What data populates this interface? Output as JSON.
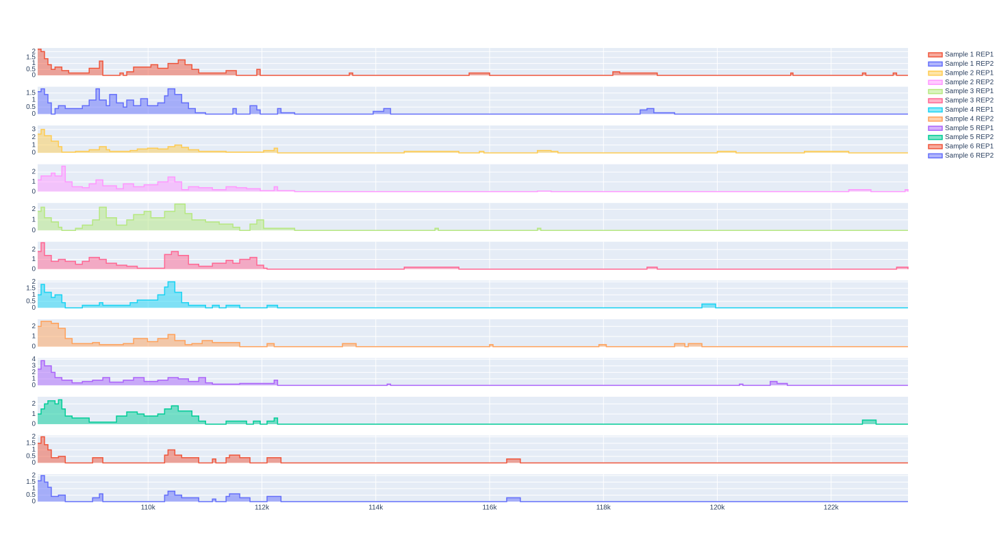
{
  "chart_data": [
    {
      "type": "area",
      "xlim": [
        108060,
        123350
      ],
      "ylim": [
        0,
        2.3
      ],
      "yticks": [
        0,
        0.5,
        1,
        1.5,
        2
      ],
      "series": [
        {
          "name": "Sample 1 REP1",
          "color": "#EF553B",
          "x": [
            108060,
            108120,
            108180,
            108240,
            108300,
            108365,
            108485,
            108605,
            108965,
            109145,
            109205,
            109505,
            109565,
            109625,
            109745,
            110050,
            110170,
            110350,
            110530,
            110650,
            110770,
            110890,
            111370,
            111550,
            111910,
            111970,
            113535,
            113595,
            115640,
            116000,
            118165,
            118285,
            118945,
            121290,
            121330,
            122550,
            122610,
            123090,
            123150,
            123350
          ],
          "values": [
            2.2,
            2.0,
            1.4,
            0.9,
            0.5,
            0.7,
            0.4,
            0.2,
            0.6,
            1.2,
            0,
            0.2,
            0,
            0.3,
            0.7,
            0.9,
            0.6,
            1.0,
            1.3,
            0.9,
            0.5,
            0.2,
            0.4,
            0,
            0.5,
            0,
            0.2,
            0,
            0.2,
            0,
            0.3,
            0.2,
            0,
            0.2,
            0,
            0.2,
            0,
            0.2,
            0,
            0
          ]
        }
      ]
    },
    {
      "type": "area",
      "xlim": [
        108060,
        123350
      ],
      "ylim": [
        0,
        1.95
      ],
      "yticks": [
        0,
        0.5,
        1,
        1.5
      ],
      "series": [
        {
          "name": "Sample 1 REP2",
          "color": "#636EFA",
          "x": [
            108060,
            108120,
            108180,
            108240,
            108300,
            108365,
            108425,
            108545,
            108725,
            108845,
            108965,
            109085,
            109145,
            109265,
            109325,
            109445,
            109565,
            109625,
            109745,
            109870,
            109990,
            110170,
            110290,
            110350,
            110470,
            110590,
            110710,
            110830,
            111010,
            111490,
            111550,
            111790,
            111910,
            111970,
            112275,
            112335,
            112575,
            113955,
            114140,
            114260,
            118645,
            118765,
            118885,
            119250,
            123350
          ],
          "values": [
            1.6,
            1.8,
            1.4,
            0.8,
            0,
            0.4,
            0.6,
            0.4,
            0.4,
            0.6,
            1.0,
            1.8,
            1.0,
            0.6,
            1.4,
            0.8,
            0.5,
            1.0,
            0.6,
            1.1,
            0.6,
            0.8,
            1.3,
            1.8,
            1.4,
            0.8,
            0.4,
            0.1,
            0,
            0.4,
            0,
            0.6,
            0.3,
            0,
            0.4,
            0.1,
            0,
            0.2,
            0.4,
            0,
            0.3,
            0.4,
            0.1,
            0,
            0
          ]
        }
      ]
    },
    {
      "type": "area",
      "xlim": [
        108060,
        123350
      ],
      "ylim": [
        0,
        3.5
      ],
      "yticks": [
        0,
        1,
        2,
        3
      ],
      "series": [
        {
          "name": "Sample 2 REP1",
          "color": "#FECB52",
          "x": [
            108060,
            108120,
            108180,
            108300,
            108425,
            108485,
            108725,
            108965,
            109145,
            109265,
            109325,
            109685,
            109810,
            109990,
            110170,
            110350,
            110470,
            110590,
            110710,
            110890,
            111370,
            112030,
            112215,
            112275,
            114500,
            115460,
            115820,
            115900,
            116840,
            117080,
            117200,
            120000,
            120330,
            121530,
            122310,
            123350
          ],
          "values": [
            2.4,
            3.0,
            2.2,
            1.5,
            0.8,
            0.1,
            0.2,
            0.4,
            0.8,
            0.4,
            0.2,
            0.3,
            0.5,
            0.6,
            0.5,
            0.8,
            1.0,
            0.7,
            0.4,
            0.2,
            0.1,
            0.3,
            0.6,
            0,
            0.2,
            0,
            0.2,
            0,
            0.3,
            0.2,
            0,
            0.2,
            0,
            0.2,
            0,
            0
          ]
        }
      ]
    },
    {
      "type": "area",
      "xlim": [
        108060,
        123350
      ],
      "ylim": [
        0,
        2.8
      ],
      "yticks": [
        0,
        1,
        2
      ],
      "series": [
        {
          "name": "Sample 2 REP2",
          "color": "#FF97FF",
          "x": [
            108060,
            108120,
            108300,
            108365,
            108485,
            108545,
            108665,
            108845,
            108965,
            109085,
            109205,
            109445,
            109565,
            109745,
            109930,
            110170,
            110350,
            110470,
            110590,
            110710,
            110890,
            111130,
            111370,
            111550,
            111730,
            111970,
            112215,
            112275,
            112575,
            116840,
            117080,
            122310,
            122700,
            123300,
            123350
          ],
          "values": [
            1.2,
            1.6,
            1.9,
            1.6,
            2.6,
            1.0,
            0.5,
            0.4,
            0.8,
            1.2,
            0.6,
            0.3,
            0.8,
            0.5,
            0.7,
            1.0,
            1.5,
            1.0,
            0.2,
            0.5,
            0.4,
            0.2,
            0.5,
            0.4,
            0.3,
            0.1,
            0.5,
            0.1,
            0,
            0.05,
            0,
            0.2,
            0,
            0.2,
            0
          ]
        }
      ]
    },
    {
      "type": "area",
      "xlim": [
        108060,
        123350
      ],
      "ylim": [
        0,
        2.6
      ],
      "yticks": [
        0,
        1,
        2
      ],
      "series": [
        {
          "name": "Sample 3 REP1",
          "color": "#B6E880",
          "x": [
            108060,
            108120,
            108180,
            108300,
            108425,
            108485,
            108725,
            108845,
            109025,
            109145,
            109265,
            109445,
            109625,
            109745,
            109930,
            110050,
            110290,
            110470,
            110650,
            110770,
            111010,
            111250,
            111490,
            111610,
            111790,
            111910,
            112030,
            112575,
            115040,
            115100,
            116840,
            116900,
            123350
          ],
          "values": [
            1.8,
            2.2,
            1.2,
            0.8,
            0.3,
            0,
            0.2,
            0.5,
            1.0,
            2.2,
            1.2,
            0.5,
            1.0,
            1.5,
            1.8,
            1.2,
            1.8,
            2.5,
            1.6,
            1.0,
            0.8,
            0.6,
            0.3,
            0,
            0.6,
            1.0,
            0.2,
            0,
            0.2,
            0,
            0.2,
            0,
            0
          ]
        }
      ]
    },
    {
      "type": "area",
      "xlim": [
        108060,
        123350
      ],
      "ylim": [
        0,
        2.8
      ],
      "yticks": [
        0,
        1,
        2
      ],
      "series": [
        {
          "name": "Sample 3 REP2",
          "color": "#FF6692",
          "x": [
            108060,
            108120,
            108180,
            108300,
            108425,
            108545,
            108725,
            108845,
            108965,
            109145,
            109265,
            109445,
            109625,
            109810,
            110290,
            110410,
            110530,
            110710,
            110890,
            111130,
            111370,
            111490,
            111610,
            111790,
            111910,
            112030,
            112090,
            114500,
            115460,
            118765,
            118945,
            123150,
            123350
          ],
          "values": [
            1.8,
            2.7,
            1.4,
            0.8,
            1.0,
            0.8,
            0.5,
            0.8,
            1.2,
            1.0,
            0.6,
            0.4,
            0.3,
            0.1,
            1.5,
            1.8,
            1.4,
            0.5,
            0.3,
            0.6,
            0.9,
            0.6,
            1.0,
            1.2,
            0.4,
            0.1,
            0,
            0.2,
            0,
            0.2,
            0,
            0.2,
            0
          ]
        }
      ]
    },
    {
      "type": "area",
      "xlim": [
        108060,
        123350
      ],
      "ylim": [
        0,
        2.1
      ],
      "yticks": [
        0,
        0.5,
        1,
        1.5,
        2
      ],
      "series": [
        {
          "name": "Sample 4 REP1",
          "color": "#19D3F3",
          "x": [
            108060,
            108120,
            108180,
            108300,
            108365,
            108485,
            108545,
            108845,
            109145,
            109205,
            109445,
            109685,
            109810,
            109990,
            110170,
            110290,
            110350,
            110470,
            110590,
            110710,
            111010,
            111130,
            111250,
            111370,
            111610,
            112090,
            112275,
            119730,
            119970,
            123350
          ],
          "values": [
            1.0,
            1.8,
            1.2,
            0.8,
            1.0,
            0.4,
            0,
            0.2,
            0.4,
            0.2,
            0.2,
            0.4,
            0.6,
            0.6,
            1.0,
            1.6,
            2.0,
            1.2,
            0.4,
            0.2,
            0,
            0.2,
            0,
            0.2,
            0,
            0.2,
            0,
            0.3,
            0,
            0
          ]
        }
      ]
    },
    {
      "type": "area",
      "xlim": [
        108060,
        123350
      ],
      "ylim": [
        0,
        2.7
      ],
      "yticks": [
        0,
        1,
        2
      ],
      "series": [
        {
          "name": "Sample 4 REP2",
          "color": "#FFA15A",
          "x": [
            108060,
            108120,
            108300,
            108425,
            108545,
            108665,
            109025,
            109145,
            109565,
            109745,
            109990,
            110170,
            110350,
            110470,
            110650,
            110770,
            110950,
            111130,
            111610,
            112090,
            112215,
            113415,
            113655,
            116000,
            116060,
            117920,
            118050,
            119250,
            119430,
            119490,
            119730,
            123350
          ],
          "values": [
            2.0,
            2.5,
            2.3,
            1.8,
            0.8,
            0.3,
            0.4,
            0.2,
            0.3,
            0.8,
            0.5,
            0.8,
            1.2,
            0.6,
            0.2,
            0.3,
            0.6,
            0.4,
            0,
            0.3,
            0,
            0.3,
            0,
            0.2,
            0,
            0.2,
            0,
            0.3,
            0,
            0.3,
            0,
            0
          ]
        }
      ]
    },
    {
      "type": "area",
      "xlim": [
        108060,
        123350
      ],
      "ylim": [
        0,
        4.2
      ],
      "yticks": [
        0,
        1,
        2,
        3,
        4
      ],
      "series": [
        {
          "name": "Sample 5 REP1",
          "color": "#AB63FA",
          "x": [
            108060,
            108120,
            108180,
            108300,
            108365,
            108485,
            108665,
            108845,
            109025,
            109205,
            109325,
            109565,
            109745,
            109930,
            110170,
            110350,
            110530,
            110710,
            110890,
            111010,
            111130,
            111610,
            112090,
            112215,
            112275,
            114200,
            114260,
            120390,
            120450,
            120930,
            121050,
            121230,
            123350
          ],
          "values": [
            2.5,
            3.8,
            3.0,
            2.0,
            1.2,
            0.8,
            0.4,
            0.6,
            0.8,
            1.2,
            0.5,
            0.8,
            1.2,
            0.6,
            0.8,
            1.2,
            1.0,
            0.6,
            1.2,
            0.4,
            0.2,
            0.3,
            0.3,
            0.8,
            0,
            0.2,
            0,
            0.2,
            0,
            0.6,
            0.3,
            0,
            0
          ]
        }
      ]
    },
    {
      "type": "area",
      "xlim": [
        108060,
        123350
      ],
      "ylim": [
        0,
        2.7
      ],
      "yticks": [
        0,
        1,
        2
      ],
      "series": [
        {
          "name": "Sample 5 REP2",
          "color": "#00CC96",
          "x": [
            108060,
            108120,
            108180,
            108240,
            108365,
            108425,
            108485,
            108545,
            108665,
            108965,
            109445,
            109625,
            109810,
            109930,
            110170,
            110290,
            110410,
            110530,
            110770,
            110890,
            111010,
            111370,
            111730,
            111850,
            111970,
            112090,
            112215,
            112275,
            122550,
            122790,
            123350
          ],
          "values": [
            1.0,
            1.5,
            2.0,
            2.3,
            2.0,
            2.4,
            1.5,
            0.8,
            0.6,
            0.2,
            0.8,
            1.2,
            1.0,
            0.8,
            1.0,
            1.5,
            1.8,
            1.3,
            0.8,
            0.3,
            0,
            0.3,
            0,
            0.3,
            0,
            0.3,
            0.6,
            0,
            0.4,
            0,
            0
          ]
        }
      ]
    },
    {
      "type": "area",
      "xlim": [
        108060,
        123350
      ],
      "ylim": [
        0,
        2.1
      ],
      "yticks": [
        0,
        0.5,
        1,
        1.5,
        2
      ],
      "series": [
        {
          "name": "Sample 6 REP1",
          "color": "#EF553B",
          "x": [
            108060,
            108120,
            108180,
            108240,
            108300,
            108425,
            108545,
            109025,
            109205,
            110290,
            110350,
            110470,
            110590,
            110890,
            111130,
            111190,
            111370,
            111430,
            111610,
            111790,
            112090,
            112335,
            116300,
            116540,
            123350
          ],
          "values": [
            1.5,
            2.0,
            1.4,
            1.0,
            0.4,
            0.5,
            0,
            0.4,
            0,
            0.6,
            1.0,
            0.6,
            0.4,
            0,
            0.3,
            0,
            0.4,
            0.6,
            0.4,
            0,
            0.4,
            0,
            0.3,
            0,
            0
          ]
        }
      ]
    },
    {
      "type": "area",
      "xlim": [
        108060,
        123350
      ],
      "ylim": [
        0,
        2.1
      ],
      "yticks": [
        0,
        0.5,
        1,
        1.5,
        2
      ],
      "xticks": [
        {
          "value": 110000,
          "label": "110k"
        },
        {
          "value": 112000,
          "label": "112k"
        },
        {
          "value": 114000,
          "label": "114k"
        },
        {
          "value": 116000,
          "label": "116k"
        },
        {
          "value": 118000,
          "label": "118k"
        },
        {
          "value": 120000,
          "label": "120k"
        },
        {
          "value": 122000,
          "label": "122k"
        }
      ],
      "series": [
        {
          "name": "Sample 6 REP2",
          "color": "#636EFA",
          "x": [
            108060,
            108120,
            108180,
            108240,
            108300,
            108425,
            108545,
            109025,
            109145,
            109205,
            110290,
            110350,
            110470,
            110590,
            110890,
            111130,
            111190,
            111370,
            111430,
            111610,
            111790,
            112090,
            112335,
            116300,
            116540,
            123350
          ],
          "values": [
            1.6,
            2.0,
            1.5,
            1.1,
            0.4,
            0.5,
            0,
            0.3,
            0.6,
            0,
            0.5,
            0.8,
            0.5,
            0.3,
            0,
            0.2,
            0,
            0.4,
            0.6,
            0.3,
            0,
            0.4,
            0,
            0.3,
            0,
            0
          ]
        }
      ]
    }
  ]
}
